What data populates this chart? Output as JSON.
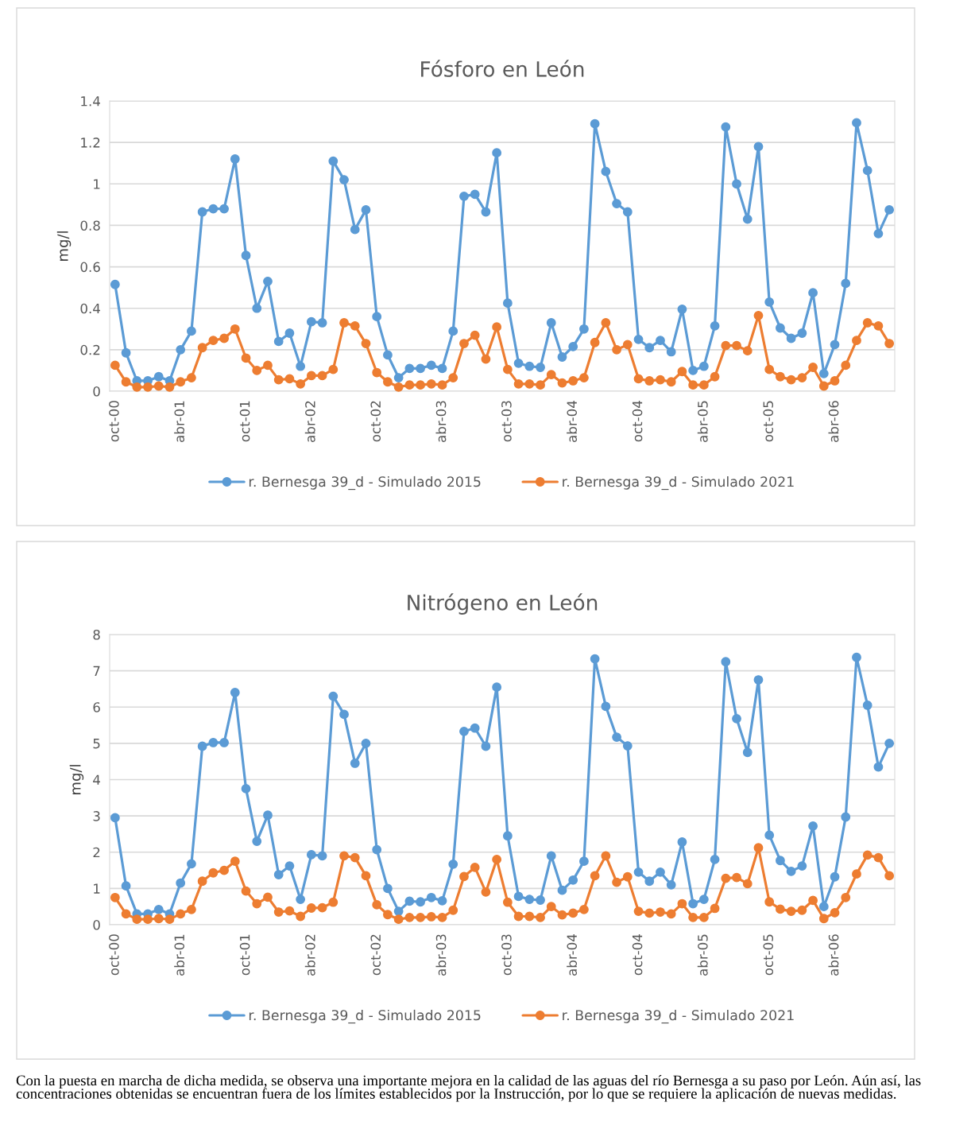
{
  "chart_data": [
    {
      "type": "line",
      "title": "Fósforo en León",
      "ylabel": "mg/l",
      "categories": [
        "oct-00",
        null,
        null,
        null,
        null,
        null,
        "abr-01",
        null,
        null,
        null,
        null,
        null,
        "oct-01",
        null,
        null,
        null,
        null,
        null,
        "abr-02",
        null,
        null,
        null,
        null,
        null,
        "oct-02",
        null,
        null,
        null,
        null,
        null,
        "abr-03",
        null,
        null,
        null,
        null,
        null,
        "oct-03",
        null,
        null,
        null,
        null,
        null,
        "abr-04",
        null,
        null,
        null,
        null,
        null,
        "oct-04",
        null,
        null,
        null,
        null,
        null,
        "abr-05",
        null,
        null,
        null,
        null,
        null,
        "oct-05",
        null,
        null,
        null,
        null,
        null,
        "abr-06",
        null,
        null,
        null,
        null,
        null
      ],
      "series": [
        {
          "name": "r. Bernesga 39_d - Simulado 2015",
          "color": "#5b9bd5",
          "values": [
            0.515,
            0.185,
            0.05,
            0.05,
            0.07,
            0.05,
            0.2,
            0.29,
            0.865,
            0.88,
            0.88,
            1.12,
            0.655,
            0.4,
            0.53,
            0.24,
            0.28,
            0.12,
            0.335,
            0.33,
            1.11,
            1.02,
            0.78,
            0.875,
            0.36,
            0.175,
            0.065,
            0.11,
            0.11,
            0.125,
            0.11,
            0.29,
            0.94,
            0.95,
            0.865,
            1.15,
            0.425,
            0.135,
            0.12,
            0.115,
            0.33,
            0.165,
            0.215,
            0.3,
            1.29,
            1.06,
            0.905,
            0.865,
            0.25,
            0.21,
            0.245,
            0.19,
            0.395,
            0.1,
            0.12,
            0.315,
            1.275,
            1.0,
            0.83,
            1.18,
            0.43,
            0.305,
            0.255,
            0.28,
            0.475,
            0.085,
            0.225,
            0.52,
            1.295,
            1.065,
            0.76,
            0.875
          ]
        },
        {
          "name": "r. Bernesga 39_d - Simulado 2021",
          "color": "#ed7d31",
          "values": [
            0.125,
            0.045,
            0.02,
            0.02,
            0.025,
            0.02,
            0.045,
            0.065,
            0.21,
            0.245,
            0.255,
            0.3,
            0.16,
            0.1,
            0.125,
            0.055,
            0.06,
            0.035,
            0.075,
            0.075,
            0.105,
            0.33,
            0.315,
            0.23,
            0.09,
            0.045,
            0.02,
            0.03,
            0.03,
            0.035,
            0.03,
            0.065,
            0.23,
            0.27,
            0.155,
            0.31,
            0.105,
            0.035,
            0.035,
            0.03,
            0.08,
            0.04,
            0.05,
            0.065,
            0.235,
            0.33,
            0.2,
            0.225,
            0.06,
            0.05,
            0.055,
            0.045,
            0.095,
            0.03,
            0.03,
            0.07,
            0.22,
            0.22,
            0.195,
            0.365,
            0.105,
            0.07,
            0.055,
            0.065,
            0.115,
            0.025,
            0.05,
            0.125,
            0.245,
            0.33,
            0.315,
            0.23
          ]
        }
      ],
      "ylim": [
        0,
        1.4
      ],
      "yticks": [
        0,
        0.2,
        0.4,
        0.6,
        0.8,
        1,
        1.2,
        1.4
      ],
      "grid": "y",
      "legend": "bottom",
      "marker": "circle",
      "line_style": "solid"
    },
    {
      "type": "line",
      "title": "Nitrógeno en León",
      "ylabel": "mg/l",
      "categories": [
        "oct-00",
        null,
        null,
        null,
        null,
        null,
        "abr-01",
        null,
        null,
        null,
        null,
        null,
        "oct-01",
        null,
        null,
        null,
        null,
        null,
        "abr-02",
        null,
        null,
        null,
        null,
        null,
        "oct-02",
        null,
        null,
        null,
        null,
        null,
        "abr-03",
        null,
        null,
        null,
        null,
        null,
        "oct-03",
        null,
        null,
        null,
        null,
        null,
        "abr-04",
        null,
        null,
        null,
        null,
        null,
        "oct-04",
        null,
        null,
        null,
        null,
        null,
        "abr-05",
        null,
        null,
        null,
        null,
        null,
        "oct-05",
        null,
        null,
        null,
        null,
        null,
        "abr-06",
        null,
        null,
        null,
        null,
        null
      ],
      "series": [
        {
          "name": "r. Bernesga 39_d - Simulado 2015",
          "color": "#5b9bd5",
          "values": [
            2.95,
            1.07,
            0.3,
            0.3,
            0.42,
            0.3,
            1.15,
            1.68,
            4.92,
            5.02,
            5.02,
            6.4,
            3.75,
            2.3,
            3.02,
            1.38,
            1.62,
            0.7,
            1.93,
            1.9,
            6.3,
            5.8,
            4.45,
            5.0,
            2.07,
            1.0,
            0.37,
            0.65,
            0.63,
            0.75,
            0.66,
            1.67,
            5.33,
            5.42,
            4.92,
            6.55,
            2.45,
            0.78,
            0.7,
            0.68,
            1.9,
            0.95,
            1.23,
            1.75,
            7.33,
            6.02,
            5.17,
            4.93,
            1.45,
            1.2,
            1.45,
            1.1,
            2.28,
            0.58,
            0.7,
            1.8,
            7.25,
            5.68,
            4.75,
            6.75,
            2.47,
            1.77,
            1.47,
            1.62,
            2.72,
            0.5,
            1.32,
            2.97,
            7.37,
            6.05,
            4.35,
            5.0
          ]
        },
        {
          "name": "r. Bernesga 39_d - Simulado 2021",
          "color": "#ed7d31",
          "values": [
            0.75,
            0.3,
            0.15,
            0.15,
            0.17,
            0.15,
            0.3,
            0.42,
            1.2,
            1.43,
            1.5,
            1.75,
            0.93,
            0.58,
            0.76,
            0.35,
            0.38,
            0.23,
            0.46,
            0.47,
            0.62,
            1.9,
            1.85,
            1.35,
            0.55,
            0.28,
            0.15,
            0.2,
            0.2,
            0.22,
            0.2,
            0.4,
            1.33,
            1.58,
            0.9,
            1.8,
            0.62,
            0.23,
            0.23,
            0.2,
            0.5,
            0.27,
            0.32,
            0.42,
            1.35,
            1.9,
            1.17,
            1.32,
            0.37,
            0.32,
            0.35,
            0.3,
            0.58,
            0.2,
            0.2,
            0.45,
            1.28,
            1.3,
            1.13,
            2.12,
            0.63,
            0.43,
            0.37,
            0.4,
            0.67,
            0.17,
            0.33,
            0.75,
            1.4,
            1.92,
            1.85,
            1.35
          ]
        }
      ],
      "ylim": [
        0,
        8
      ],
      "yticks": [
        0,
        1,
        2,
        3,
        4,
        5,
        6,
        7,
        8
      ],
      "grid": "y",
      "legend": "bottom",
      "marker": "circle",
      "line_style": "solid",
      "annotations": [
        "Con la puesta en marcha de dicha medida, se observa una importante mejora en la calidad de las aguas del río Bernesga a su paso por León. Aún así, las concentraciones obtenidas se encuentran fuera de los límites establecidos por la Instrucción, por lo que se requiere la aplicación de nuevas medidas."
      ]
    }
  ]
}
